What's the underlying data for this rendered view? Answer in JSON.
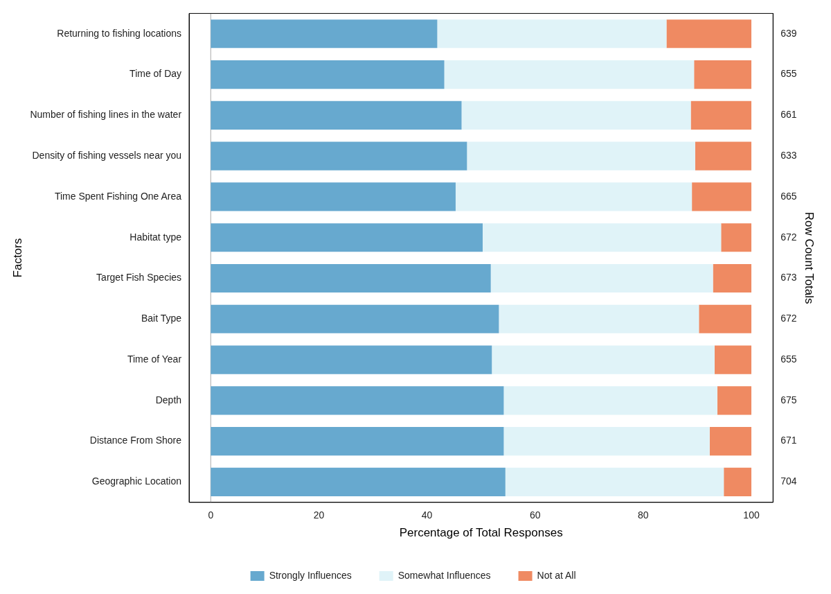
{
  "chart_data": {
    "type": "bar",
    "orientation": "horizontal",
    "stacked": true,
    "xlabel": "Percentage of Total Responses",
    "ylabel": "Factors",
    "y2label": "Row Count Totals",
    "categories": [
      "Returning to fishing locations",
      "Time of Day",
      "Number of fishing lines in the water",
      "Density of fishing vessels near you",
      "Time Spent Fishing One Area",
      "Habitat type",
      "Target Fish Species",
      "Bait Type",
      "Time of Year",
      "Depth",
      "Distance From Shore",
      "Geographic Location"
    ],
    "series": [
      {
        "name": "Strongly Influences",
        "color": "#67a9cf",
        "values": [
          41.9,
          43.2,
          46.4,
          47.4,
          45.3,
          50.3,
          51.8,
          53.3,
          52.0,
          54.2,
          54.2,
          54.5
        ]
      },
      {
        "name": "Somewhat Influences",
        "color": "#e0f3f8",
        "values": [
          42.4,
          46.2,
          42.4,
          42.2,
          43.7,
          44.1,
          41.1,
          37.0,
          41.2,
          39.5,
          38.1,
          40.4
        ]
      },
      {
        "name": "Not at All",
        "color": "#ef8a62",
        "values": [
          15.7,
          10.6,
          11.2,
          10.4,
          11.0,
          5.6,
          7.1,
          9.7,
          6.8,
          6.3,
          7.7,
          5.1
        ]
      }
    ],
    "ref_lines": [
      {
        "axis": "x",
        "value": 0,
        "color": "#aaaaaa"
      }
    ],
    "y2_categories": [
      "639",
      "655",
      "661",
      "633",
      "665",
      "672",
      "673",
      "672",
      "655",
      "675",
      "671",
      "704"
    ],
    "xlim": [
      -4,
      104
    ],
    "xticks": [
      0,
      20,
      40,
      60,
      80,
      100
    ],
    "grid": false,
    "legend": "bottom"
  }
}
